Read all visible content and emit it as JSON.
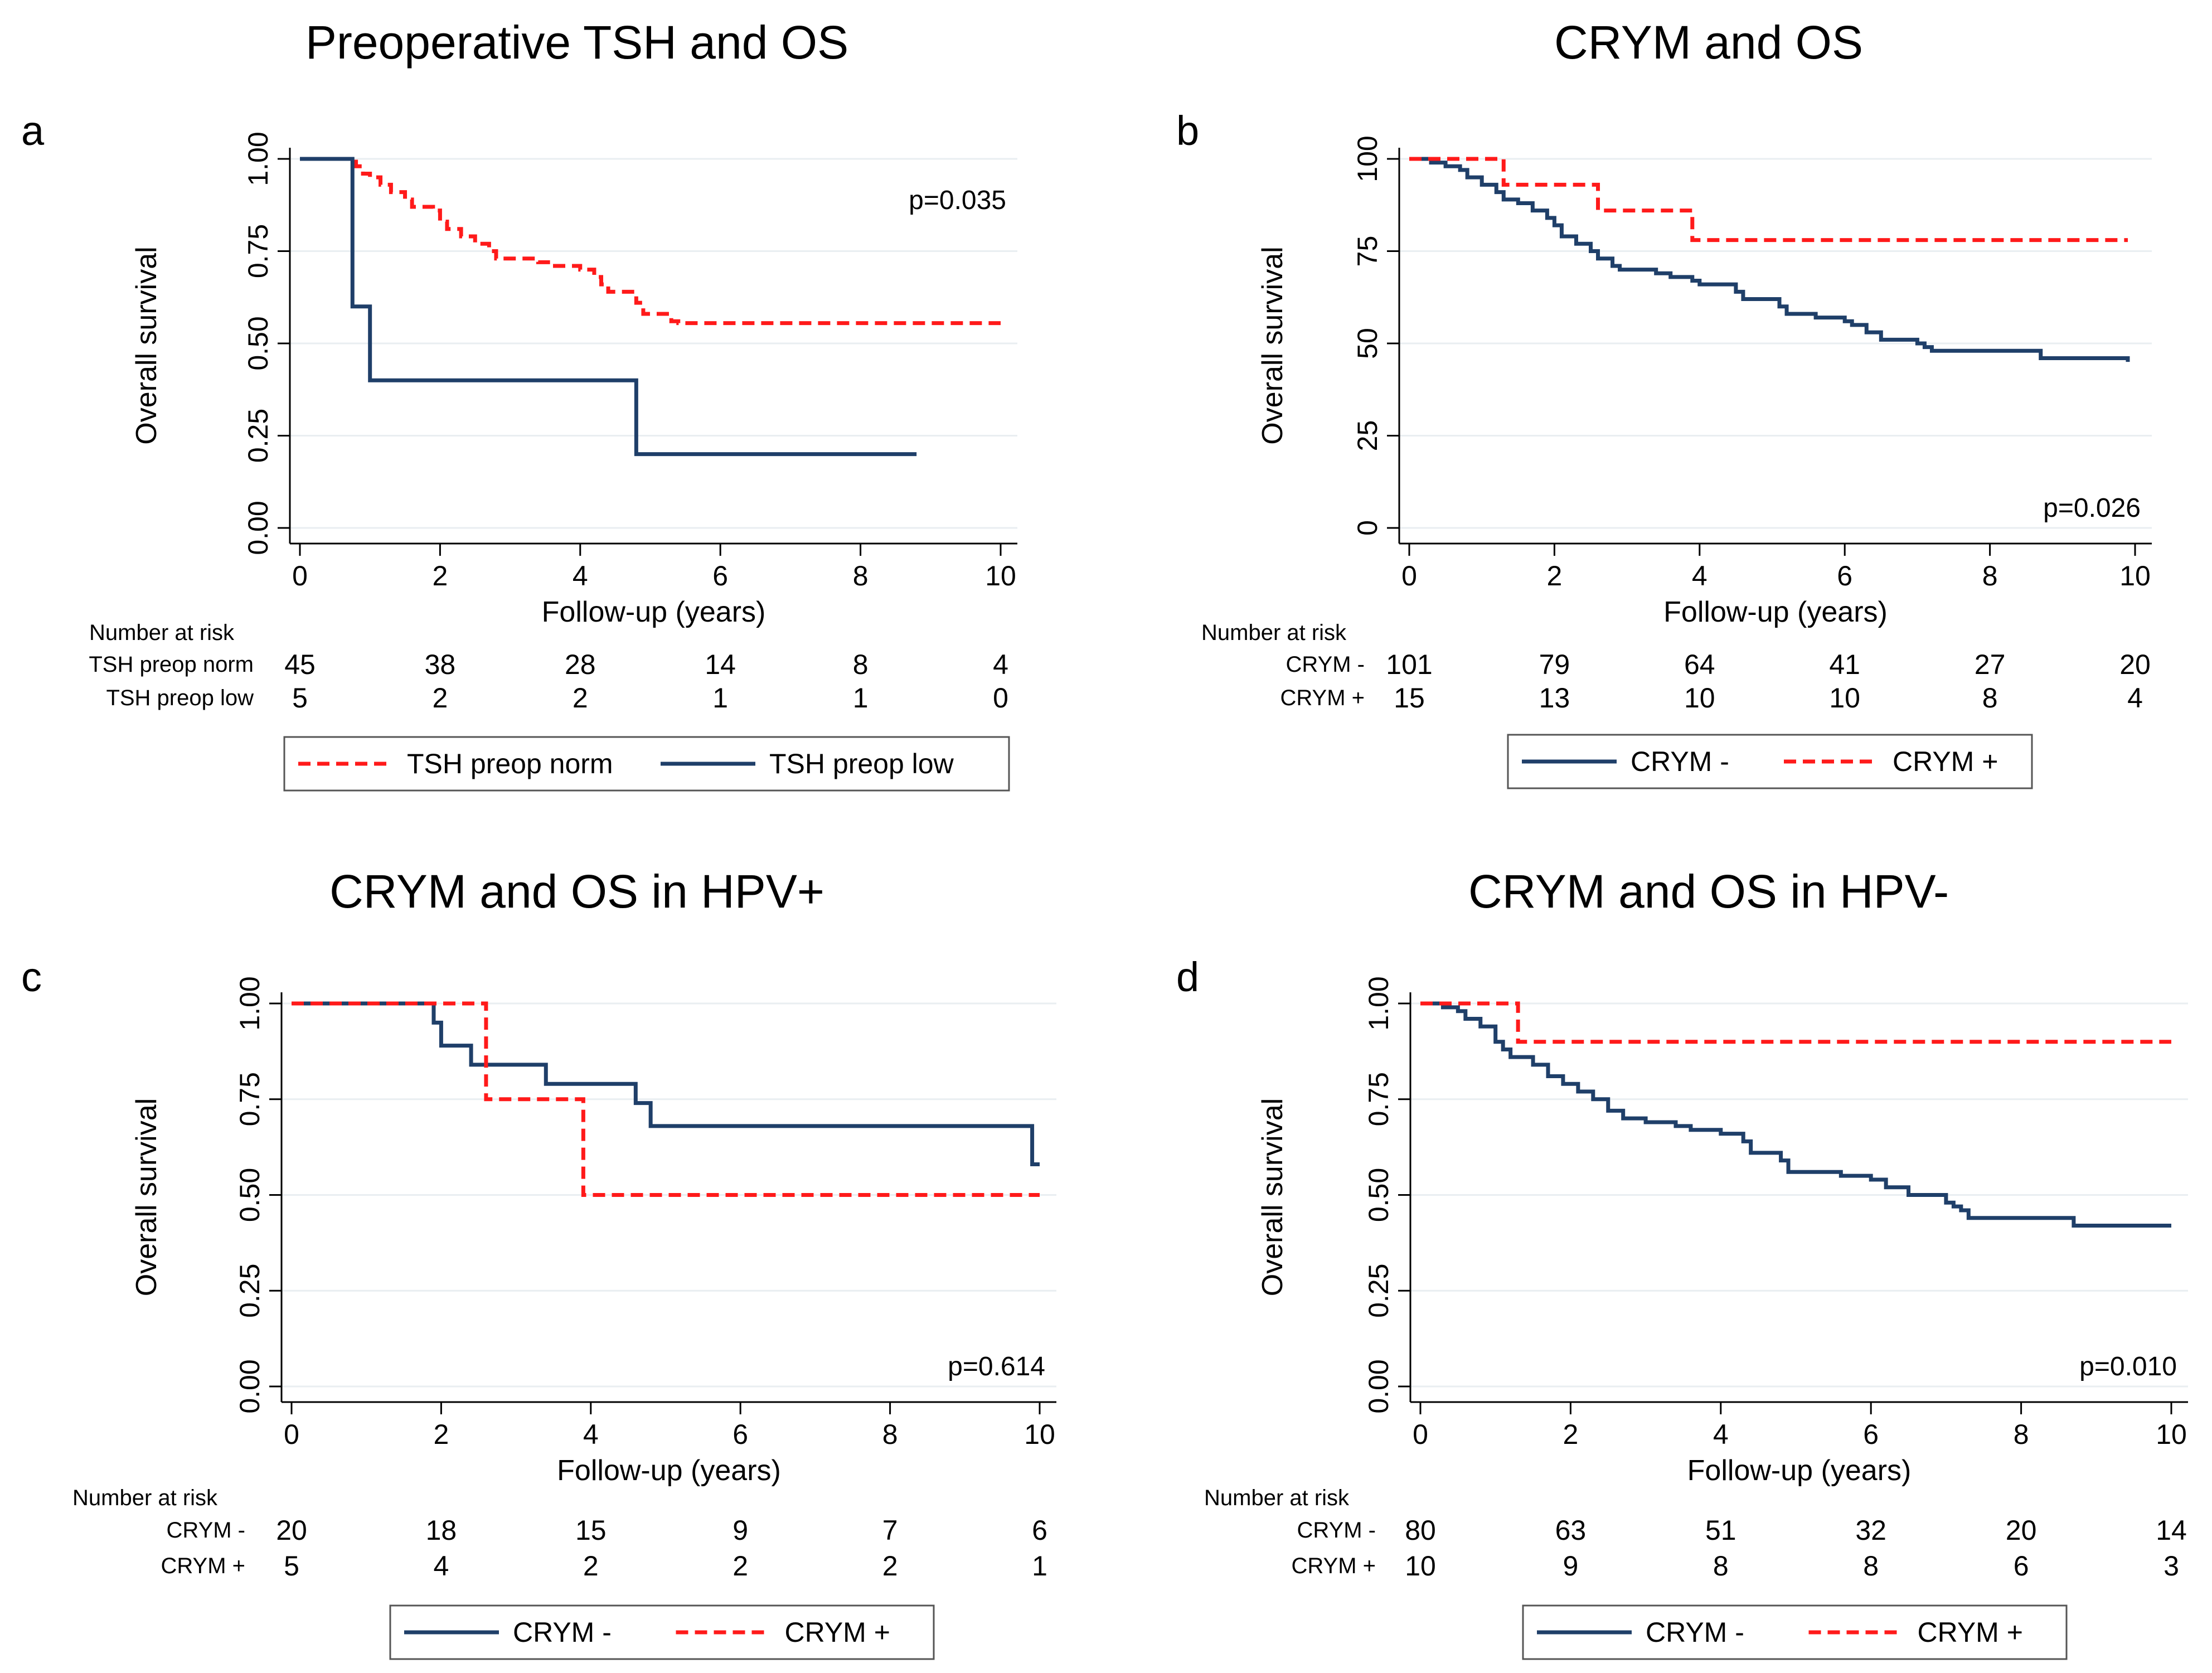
{
  "colors": {
    "blue": "#1f3f69",
    "red": "#ff1a1a",
    "grid": "#e9eef1",
    "axis": "#000000"
  },
  "chart_data": [
    {
      "panel": "a",
      "type": "line",
      "title": "Preoperative TSH and OS",
      "xlabel": "Follow-up (years)",
      "ylabel": "Overall survival",
      "xlim": [
        0,
        10
      ],
      "ylim": [
        0,
        1
      ],
      "xticks": [
        "0",
        "2",
        "4",
        "6",
        "8",
        "10"
      ],
      "yticks": [
        "0.00",
        "0.25",
        "0.50",
        "0.75",
        "1.00"
      ],
      "p_value": "p=0.035",
      "p_pos": "top-right",
      "risk_header": "Number at risk",
      "series": [
        {
          "name": "TSH preop norm",
          "color": "red",
          "dashed": true,
          "risk": [
            "45",
            "38",
            "28",
            "14",
            "8",
            "4"
          ],
          "steps": [
            [
              0,
              1
            ],
            [
              0.8,
              0.98
            ],
            [
              0.9,
              0.96
            ],
            [
              1.0,
              0.95
            ],
            [
              1.15,
              0.93
            ],
            [
              1.3,
              0.91
            ],
            [
              1.5,
              0.89
            ],
            [
              1.6,
              0.87
            ],
            [
              1.9,
              0.86
            ],
            [
              2.0,
              0.83
            ],
            [
              2.1,
              0.81
            ],
            [
              2.3,
              0.79
            ],
            [
              2.5,
              0.77
            ],
            [
              2.7,
              0.75
            ],
            [
              2.8,
              0.73
            ],
            [
              3.3,
              0.73
            ],
            [
              3.4,
              0.72
            ],
            [
              3.5,
              0.72
            ],
            [
              3.6,
              0.71
            ],
            [
              4.0,
              0.7
            ],
            [
              4.2,
              0.68
            ],
            [
              4.3,
              0.66
            ],
            [
              4.4,
              0.64
            ],
            [
              4.8,
              0.61
            ],
            [
              4.9,
              0.58
            ],
            [
              5.3,
              0.56
            ],
            [
              5.4,
              0.555
            ],
            [
              10.0,
              0.555
            ]
          ]
        },
        {
          "name": "TSH preop low",
          "color": "blue",
          "dashed": false,
          "risk": [
            "5",
            "2",
            "2",
            "1",
            "1",
            "0"
          ],
          "steps": [
            [
              0,
              1
            ],
            [
              0.75,
              0.6
            ],
            [
              1.0,
              0.4
            ],
            [
              4.8,
              0.2
            ],
            [
              8.8,
              0.2
            ]
          ]
        }
      ],
      "legend": [
        "TSH preop norm",
        "TSH preop low"
      ]
    },
    {
      "panel": "b",
      "type": "line",
      "title": "CRYM and OS",
      "xlabel": "Follow-up (years)",
      "ylabel": "Overall survival",
      "xlim": [
        0,
        10
      ],
      "ylim": [
        0,
        100
      ],
      "xticks": [
        "0",
        "2",
        "4",
        "6",
        "8",
        "10"
      ],
      "yticks": [
        "0",
        "25",
        "50",
        "75",
        "100"
      ],
      "p_value": "p=0.026",
      "p_pos": "bottom-right",
      "risk_header": "Number at risk",
      "series": [
        {
          "name": "CRYM -",
          "color": "blue",
          "dashed": false,
          "risk": [
            "101",
            "79",
            "64",
            "41",
            "27",
            "20"
          ],
          "steps": [
            [
              0,
              100
            ],
            [
              0.3,
              99
            ],
            [
              0.5,
              98
            ],
            [
              0.7,
              97
            ],
            [
              0.8,
              95
            ],
            [
              1.0,
              93
            ],
            [
              1.2,
              91
            ],
            [
              1.3,
              89
            ],
            [
              1.5,
              88
            ],
            [
              1.7,
              86
            ],
            [
              1.9,
              84
            ],
            [
              2.0,
              82
            ],
            [
              2.1,
              79
            ],
            [
              2.3,
              77
            ],
            [
              2.5,
              75
            ],
            [
              2.6,
              73
            ],
            [
              2.8,
              71
            ],
            [
              2.9,
              70
            ],
            [
              3.4,
              69
            ],
            [
              3.6,
              68
            ],
            [
              3.9,
              67
            ],
            [
              4.0,
              66
            ],
            [
              4.5,
              64
            ],
            [
              4.6,
              62
            ],
            [
              5.1,
              60
            ],
            [
              5.2,
              58
            ],
            [
              5.6,
              57
            ],
            [
              6.0,
              56
            ],
            [
              6.1,
              55
            ],
            [
              6.3,
              53
            ],
            [
              6.5,
              51
            ],
            [
              7.0,
              50
            ],
            [
              7.1,
              49
            ],
            [
              7.2,
              48
            ],
            [
              8.7,
              46
            ],
            [
              9.9,
              45
            ]
          ]
        },
        {
          "name": "CRYM +",
          "color": "red",
          "dashed": true,
          "risk": [
            "15",
            "13",
            "10",
            "10",
            "8",
            "4"
          ],
          "steps": [
            [
              0,
              100
            ],
            [
              1.3,
              93
            ],
            [
              2.6,
              86
            ],
            [
              3.9,
              78
            ],
            [
              9.9,
              78
            ]
          ]
        }
      ],
      "legend": [
        "CRYM -",
        "CRYM +"
      ]
    },
    {
      "panel": "c",
      "type": "line",
      "title": "CRYM and OS in HPV+",
      "xlabel": "Follow-up (years)",
      "ylabel": "Overall survival",
      "xlim": [
        0,
        10
      ],
      "ylim": [
        0,
        1
      ],
      "xticks": [
        "0",
        "2",
        "4",
        "6",
        "8",
        "10"
      ],
      "yticks": [
        "0.00",
        "0.25",
        "0.50",
        "0.75",
        "1.00"
      ],
      "p_value": "p=0.614",
      "p_pos": "bottom-right",
      "risk_header": "Number at risk",
      "series": [
        {
          "name": "CRYM -",
          "color": "blue",
          "dashed": false,
          "risk": [
            "20",
            "18",
            "15",
            "9",
            "7",
            "6"
          ],
          "steps": [
            [
              0,
              1
            ],
            [
              1.9,
              0.95
            ],
            [
              2.0,
              0.89
            ],
            [
              2.4,
              0.84
            ],
            [
              3.4,
              0.79
            ],
            [
              4.6,
              0.74
            ],
            [
              4.8,
              0.68
            ],
            [
              9.9,
              0.58
            ],
            [
              10.0,
              0.58
            ]
          ]
        },
        {
          "name": "CRYM +",
          "color": "red",
          "dashed": true,
          "risk": [
            "5",
            "4",
            "2",
            "2",
            "2",
            "1"
          ],
          "steps": [
            [
              0,
              1
            ],
            [
              2.6,
              0.75
            ],
            [
              3.9,
              0.5
            ],
            [
              10.0,
              0.5
            ]
          ]
        }
      ],
      "legend": [
        "CRYM -",
        "CRYM +"
      ]
    },
    {
      "panel": "d",
      "type": "line",
      "title": "CRYM and OS in HPV-",
      "xlabel": "Follow-up (years)",
      "ylabel": "Overall survival",
      "xlim": [
        0,
        10
      ],
      "ylim": [
        0,
        1
      ],
      "xticks": [
        "0",
        "2",
        "4",
        "6",
        "8",
        "10"
      ],
      "yticks": [
        "0.00",
        "0.25",
        "0.50",
        "0.75",
        "1.00"
      ],
      "p_value": "p=0.010",
      "p_pos": "bottom-right",
      "risk_header": "Number at risk",
      "series": [
        {
          "name": "CRYM -",
          "color": "blue",
          "dashed": false,
          "risk": [
            "80",
            "63",
            "51",
            "32",
            "20",
            "14"
          ],
          "steps": [
            [
              0,
              1
            ],
            [
              0.3,
              0.99
            ],
            [
              0.5,
              0.98
            ],
            [
              0.6,
              0.96
            ],
            [
              0.8,
              0.94
            ],
            [
              1.0,
              0.9
            ],
            [
              1.1,
              0.88
            ],
            [
              1.2,
              0.86
            ],
            [
              1.5,
              0.84
            ],
            [
              1.7,
              0.81
            ],
            [
              1.9,
              0.79
            ],
            [
              2.1,
              0.77
            ],
            [
              2.3,
              0.75
            ],
            [
              2.5,
              0.72
            ],
            [
              2.7,
              0.7
            ],
            [
              3.0,
              0.69
            ],
            [
              3.4,
              0.68
            ],
            [
              3.6,
              0.67
            ],
            [
              4.0,
              0.66
            ],
            [
              4.3,
              0.64
            ],
            [
              4.4,
              0.61
            ],
            [
              4.8,
              0.59
            ],
            [
              4.9,
              0.56
            ],
            [
              5.6,
              0.55
            ],
            [
              6.0,
              0.54
            ],
            [
              6.2,
              0.52
            ],
            [
              6.5,
              0.5
            ],
            [
              7.0,
              0.48
            ],
            [
              7.1,
              0.47
            ],
            [
              7.2,
              0.46
            ],
            [
              7.3,
              0.44
            ],
            [
              7.4,
              0.44
            ],
            [
              8.7,
              0.42
            ],
            [
              10.0,
              0.42
            ]
          ]
        },
        {
          "name": "CRYM +",
          "color": "red",
          "dashed": true,
          "risk": [
            "10",
            "9",
            "8",
            "8",
            "6",
            "3"
          ],
          "steps": [
            [
              0,
              1
            ],
            [
              1.3,
              0.9
            ],
            [
              10.0,
              0.9
            ]
          ]
        }
      ],
      "legend": [
        "CRYM -",
        "CRYM +"
      ]
    }
  ]
}
